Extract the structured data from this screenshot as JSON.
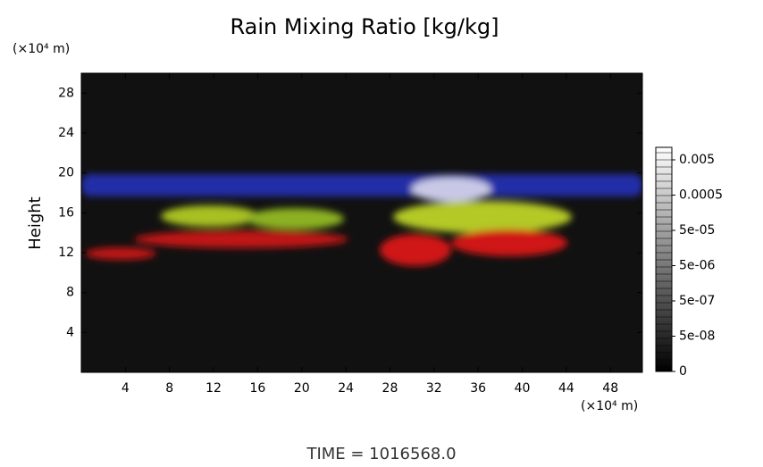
{
  "chart_data": {
    "type": "volume",
    "title": "Rain Mixing Ratio [kg/kg]",
    "y_unit": "(×10⁴ m)",
    "y_label": "Height",
    "x_unit": "(×10⁴ m)",
    "footer": "TIME = 1016568.0",
    "xlim": [
      0,
      50.9
    ],
    "ylim": [
      0,
      30
    ],
    "xticks": [
      4,
      8,
      12,
      16,
      20,
      24,
      28,
      32,
      36,
      40,
      44,
      48
    ],
    "yticks": [
      4,
      8,
      12,
      16,
      20,
      24,
      28
    ],
    "colorbar": {
      "ticks": [
        0,
        {
          "value": 5e-08,
          "label": "5e-08"
        },
        {
          "value": 5e-07,
          "label": "5e-07"
        },
        {
          "value": 5e-06,
          "label": "5e-06"
        },
        {
          "value": 5e-05,
          "label": "5e-05"
        },
        0.0005,
        0.005
      ]
    }
  }
}
